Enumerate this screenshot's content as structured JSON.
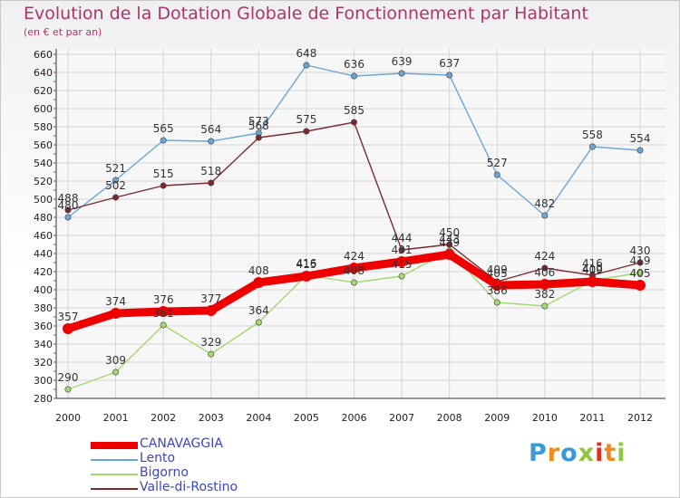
{
  "title": "Evolution de la Dotation Globale de Fonctionnement par Habitant",
  "subtitle": "(en € et par an)",
  "logo": {
    "letters": [
      "P",
      "r",
      "o",
      "x",
      "i",
      "t",
      "i"
    ],
    "colors": [
      "#3a9ad9",
      "#f08a1c",
      "#3a9ad9",
      "#8cc63f",
      "#e0301e",
      "#f08a1c",
      "#8cc63f"
    ]
  },
  "chart_data": {
    "type": "line",
    "x": [
      "2000",
      "2001",
      "2002",
      "2003",
      "2004",
      "2005",
      "2006",
      "2007",
      "2008",
      "2009",
      "2010",
      "2011",
      "2012"
    ],
    "ylim": [
      280,
      660
    ],
    "yticks": [
      280,
      300,
      320,
      340,
      360,
      380,
      400,
      420,
      440,
      460,
      480,
      500,
      520,
      540,
      560,
      580,
      600,
      620,
      640,
      660
    ],
    "grid": true,
    "legend_position": "bottom-left",
    "series": [
      {
        "name": "CANAVAGGIA",
        "color": "#ee0000",
        "values": [
          357,
          374,
          376,
          377,
          408,
          415,
          424,
          431,
          439,
          405,
          406,
          409,
          405
        ],
        "labels": [
          "357",
          "374",
          "376",
          "377",
          "408",
          "415",
          "424",
          "431",
          "439",
          "405",
          "406",
          "409",
          "405"
        ]
      },
      {
        "name": "Lento",
        "color": "#6aa5d6",
        "values": [
          480,
          521,
          565,
          564,
          573,
          648,
          636,
          639,
          637,
          527,
          482,
          558,
          554
        ],
        "labels": [
          "480",
          "521",
          "565",
          "564",
          "573",
          "648",
          "636",
          "639",
          "637",
          "527",
          "482",
          "558",
          "554"
        ]
      },
      {
        "name": "Bigorno",
        "color": "#a4d873",
        "values": [
          290,
          309,
          361,
          329,
          364,
          416,
          408,
          415,
          443,
          386,
          382,
          410,
          419
        ],
        "labels": [
          "290",
          "309",
          "361",
          "329",
          "364",
          "416",
          "408",
          "415",
          "443",
          "386",
          "382",
          "410",
          "419"
        ]
      },
      {
        "name": "Valle-di-Rostino",
        "color": "#7a2a2e",
        "values": [
          488,
          502,
          515,
          518,
          568,
          575,
          585,
          444,
          450,
          409,
          424,
          416,
          430
        ],
        "labels": [
          "488",
          "502",
          "515",
          "518",
          "568",
          "575",
          "585",
          "444",
          "450",
          "409",
          "424",
          "416",
          "430"
        ]
      }
    ]
  }
}
